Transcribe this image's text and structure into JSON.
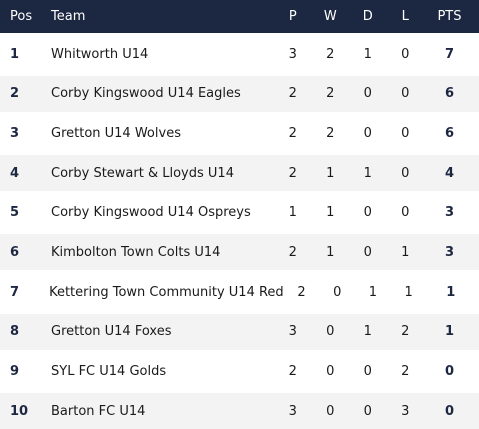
{
  "header": {
    "pos": "Pos",
    "team": "Team",
    "p": "P",
    "w": "W",
    "d": "D",
    "l": "L",
    "pts": "PTS"
  },
  "rows": [
    {
      "pos": "1",
      "team": "Whitworth U14",
      "p": "3",
      "w": "2",
      "d": "1",
      "l": "0",
      "pts": "7"
    },
    {
      "pos": "2",
      "team": "Corby Kingswood U14 Eagles",
      "p": "2",
      "w": "2",
      "d": "0",
      "l": "0",
      "pts": "6"
    },
    {
      "pos": "3",
      "team": "Gretton U14 Wolves",
      "p": "2",
      "w": "2",
      "d": "0",
      "l": "0",
      "pts": "6"
    },
    {
      "pos": "4",
      "team": "Corby Stewart & Lloyds U14",
      "p": "2",
      "w": "1",
      "d": "1",
      "l": "0",
      "pts": "4"
    },
    {
      "pos": "5",
      "team": "Corby Kingswood U14 Ospreys",
      "p": "1",
      "w": "1",
      "d": "0",
      "l": "0",
      "pts": "3"
    },
    {
      "pos": "6",
      "team": "Kimbolton Town Colts U14",
      "p": "2",
      "w": "1",
      "d": "0",
      "l": "1",
      "pts": "3"
    },
    {
      "pos": "7",
      "team": "Kettering Town Community U14 Red",
      "p": "2",
      "w": "0",
      "d": "1",
      "l": "1",
      "pts": "1"
    },
    {
      "pos": "8",
      "team": "Gretton U14 Foxes",
      "p": "3",
      "w": "0",
      "d": "1",
      "l": "2",
      "pts": "1"
    },
    {
      "pos": "9",
      "team": "SYL FC U14 Golds",
      "p": "2",
      "w": "0",
      "d": "0",
      "l": "2",
      "pts": "0"
    },
    {
      "pos": "10",
      "team": "Barton FC U14",
      "p": "3",
      "w": "0",
      "d": "0",
      "l": "3",
      "pts": "0"
    }
  ],
  "colors": {
    "header_bg": "#1c2741",
    "row_alt_bg": "#f3f3f3"
  }
}
